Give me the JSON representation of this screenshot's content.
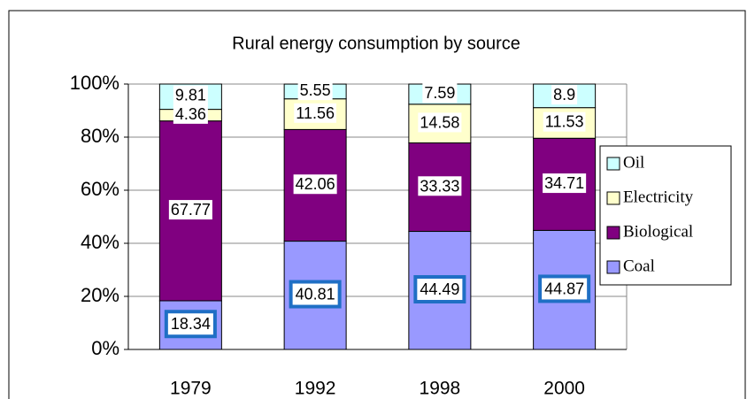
{
  "chart_data": {
    "type": "bar",
    "stacked": true,
    "title": "Rural energy consumption by source",
    "categories": [
      "1979",
      "1992",
      "1998",
      "2000"
    ],
    "series": [
      {
        "name": "Coal",
        "color": "#9999ff",
        "values": [
          18.34,
          40.81,
          44.49,
          44.87
        ]
      },
      {
        "name": "Biological",
        "color": "#800080",
        "values": [
          67.77,
          42.06,
          33.33,
          34.71
        ]
      },
      {
        "name": "Electricity",
        "color": "#ffffcc",
        "values": [
          4.36,
          11.56,
          14.58,
          11.53
        ]
      },
      {
        "name": "Oil",
        "color": "#ccffff",
        "values": [
          9.81,
          5.55,
          7.59,
          8.9
        ]
      }
    ],
    "ylim": [
      0,
      100
    ],
    "yticks": [
      {
        "value": 0,
        "label": "0%"
      },
      {
        "value": 20,
        "label": "20%"
      },
      {
        "value": 40,
        "label": "40%"
      },
      {
        "value": 60,
        "label": "60%"
      },
      {
        "value": 80,
        "label": "80%"
      },
      {
        "value": 100,
        "label": "100%"
      }
    ],
    "grid": true,
    "legend": "right"
  }
}
